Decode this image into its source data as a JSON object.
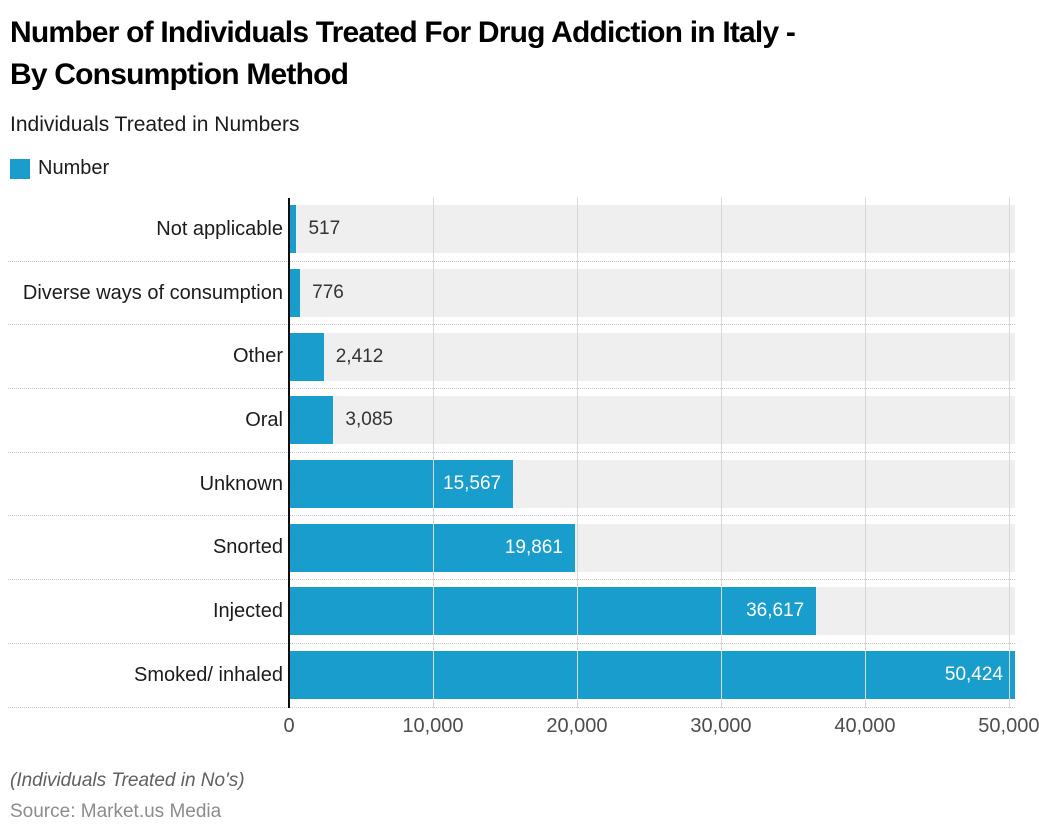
{
  "header": {
    "title": "Number of Individuals Treated For Drug Addiction in Italy -\nBy Consumption Method",
    "subtitle": "Individuals Treated in Numbers"
  },
  "legend": {
    "label": "Number",
    "swatch_color": "#199dcd"
  },
  "chart_data": {
    "type": "bar",
    "orientation": "horizontal",
    "title": "Number of Individuals Treated For Drug Addiction in Italy - By Consumption Method",
    "series_name": "Number",
    "categories": [
      "Not applicable",
      "Diverse ways of consumption",
      "Other",
      "Oral",
      "Unknown",
      "Snorted",
      "Injected",
      "Smoked/ inhaled"
    ],
    "values": [
      517,
      776,
      2412,
      3085,
      15567,
      19861,
      36617,
      50424
    ],
    "value_labels": [
      "517",
      "776",
      "2,412",
      "3,085",
      "15,567",
      "19,861",
      "36,617",
      "50,424"
    ],
    "xlabel": "",
    "ylabel": "",
    "xlim": [
      0,
      50424
    ],
    "ticks": [
      0,
      10000,
      20000,
      30000,
      40000,
      50000
    ],
    "tick_labels": [
      "0",
      "10,000",
      "20,000",
      "30,000",
      "40,000",
      "50,000"
    ],
    "bar_color": "#199dcd",
    "track_color": "#efefef",
    "grid": "vertical",
    "legend_position": "top-left",
    "inside_label_threshold": 10000
  },
  "footer": {
    "note": "(Individuals Treated in No's)",
    "source": "Source: Market.us Media"
  }
}
